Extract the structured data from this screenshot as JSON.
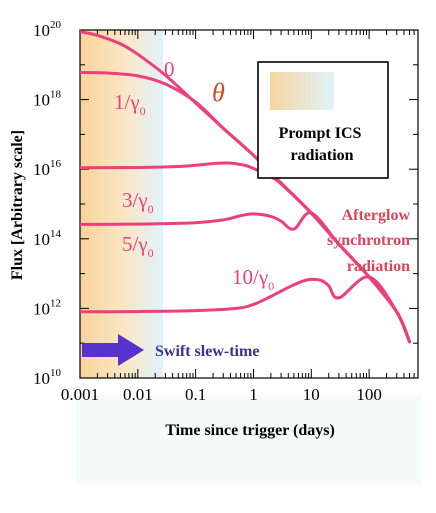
{
  "chart_data": {
    "type": "line",
    "title": "",
    "xlabel": "Time since trigger (days)",
    "ylabel": "Flux [Arbitrary scale]",
    "x_scale": "log",
    "y_scale": "log",
    "xlim": [
      0.001,
      700
    ],
    "ylim": [
      10000000000.0,
      1e+20
    ],
    "x_ticks": [
      {
        "value": 0.001,
        "label": "0.001"
      },
      {
        "value": 0.01,
        "label": "0.01"
      },
      {
        "value": 0.1,
        "label": "0.1"
      },
      {
        "value": 1,
        "label": "1"
      },
      {
        "value": 10,
        "label": "10"
      },
      {
        "value": 100,
        "label": "100"
      }
    ],
    "y_ticks": [
      {
        "value": 10000000000.0,
        "base": "10",
        "exp": "10"
      },
      {
        "value": 1000000000000.0,
        "base": "10",
        "exp": "12"
      },
      {
        "value": 100000000000000.0,
        "base": "10",
        "exp": "14"
      },
      {
        "value": 1e+16,
        "base": "10",
        "exp": "16"
      },
      {
        "value": 1e+18,
        "base": "10",
        "exp": "18"
      },
      {
        "value": 1e+20,
        "base": "10",
        "exp": "20"
      }
    ],
    "grid": false,
    "series": [
      {
        "name": "0",
        "x": [
          0.001,
          0.002,
          0.005,
          0.01,
          0.03,
          0.1,
          0.3,
          1,
          3,
          10,
          30,
          100,
          300,
          500
        ],
        "y": [
          9e+19,
          7e+19,
          4e+19,
          2e+19,
          5e+18,
          8e+17,
          1.5e+17,
          2.5e+16,
          4000000000000000.0,
          550000000000000.0,
          70000000000000.0,
          8000000000000.0,
          800000000000.0,
          110000000000.0
        ]
      },
      {
        "name": "1/γ0",
        "x": [
          0.001,
          0.003,
          0.01,
          0.03,
          0.1,
          0.3,
          1,
          3,
          10,
          30,
          100,
          300,
          500
        ],
        "y": [
          6e+18,
          5.8e+18,
          4.8e+18,
          2.8e+18,
          8.5e+17,
          1.5e+17,
          2.5e+16,
          4000000000000000.0,
          550000000000000.0,
          70000000000000.0,
          8000000000000.0,
          800000000000.0,
          110000000000.0
        ]
      },
      {
        "name": "3/γ0",
        "x": [
          0.001,
          0.01,
          0.05,
          0.1,
          0.2,
          0.4,
          0.7,
          1,
          2,
          3,
          10,
          30,
          100,
          300,
          500
        ],
        "y": [
          1.1e+16,
          1.12e+16,
          1.2e+16,
          1.3e+16,
          1.45e+16,
          1.5e+16,
          1.3e+16,
          1.05e+16,
          6000000000000000.0,
          3800000000000000.0,
          550000000000000.0,
          70000000000000.0,
          8000000000000.0,
          800000000000.0,
          110000000000.0
        ]
      },
      {
        "name": "5/γ0",
        "x": [
          0.001,
          0.01,
          0.1,
          0.3,
          0.6,
          1,
          2,
          3,
          5,
          10,
          30,
          100,
          300,
          500
        ],
        "y": [
          260000000000000.0,
          265000000000000.0,
          290000000000000.0,
          350000000000000.0,
          460000000000000.0,
          520000000000000.0,
          440000000000000.0,
          320000000000000.0,
          190000000000000.0,
          550000000000000.0,
          70000000000000.0,
          8000000000000.0,
          800000000000.0,
          110000000000.0
        ]
      },
      {
        "name": "10/γ0",
        "x": [
          0.001,
          0.01,
          0.1,
          0.5,
          1,
          2,
          4,
          7,
          10,
          15,
          20,
          30,
          100,
          300,
          500
        ],
        "y": [
          800000000000.0,
          810000000000.0,
          860000000000.0,
          1000000000000.0,
          1300000000000.0,
          2200000000000.0,
          4000000000000.0,
          6000000000000.0,
          6800000000000.0,
          6300000000000.0,
          4500000000000.0,
          2000000000000.0,
          8000000000000.0,
          800000000000.0,
          110000000000.0
        ]
      }
    ],
    "legend": {
      "title": "Prompt ICS radiation",
      "swatch_colors": [
        "#f7d5a0",
        "#dff3fb"
      ]
    },
    "annotations": {
      "theta": "θ",
      "afterglow": [
        "Afterglow",
        "synchrotron",
        "radiation"
      ],
      "slew": "Swift slew-time"
    },
    "colors": {
      "curve": "#ee3f7d",
      "theta": "#d9461c",
      "afterglow_text": "#d9455a",
      "arrow": "#5533cc",
      "slew_text": "#3a2f95",
      "prompt_band_left": "#f8d39a",
      "prompt_band_right": "#dff3fb"
    }
  }
}
